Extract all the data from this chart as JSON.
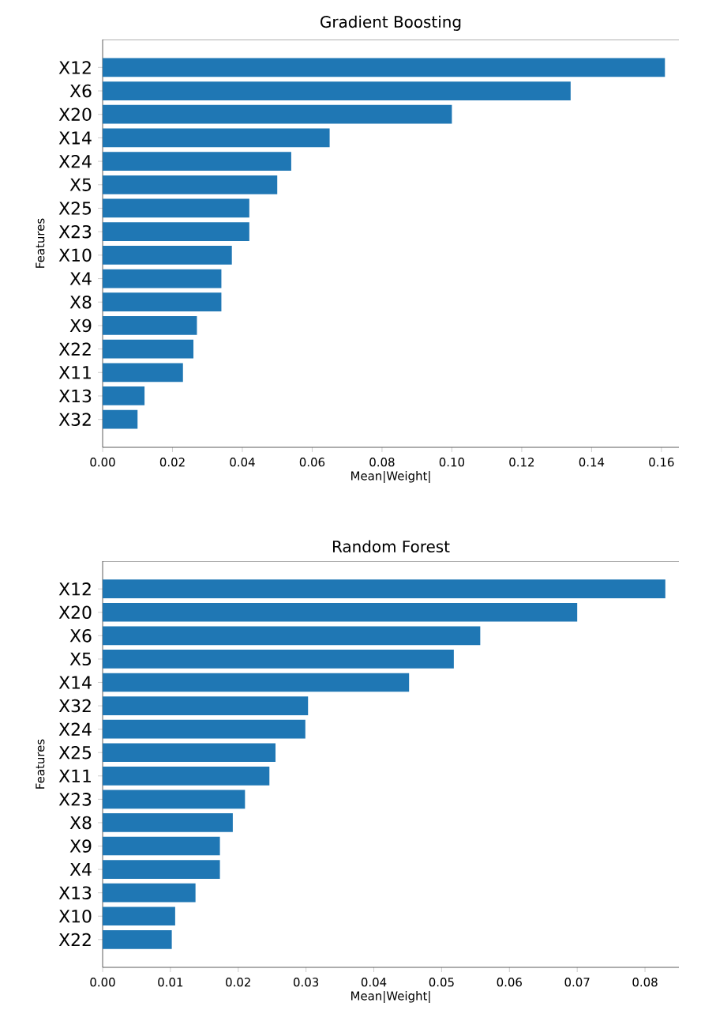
{
  "chart_data": [
    {
      "type": "bar",
      "orientation": "horizontal",
      "title": "Gradient Boosting",
      "xlabel": "Mean|Weight|",
      "ylabel": "Features",
      "color": "#1f77b4",
      "categories": [
        "X12",
        "X6",
        "X20",
        "X14",
        "X24",
        "X5",
        "X25",
        "X23",
        "X10",
        "X4",
        "X8",
        "X9",
        "X22",
        "X11",
        "X13",
        "X32"
      ],
      "values": [
        0.161,
        0.134,
        0.1,
        0.065,
        0.054,
        0.05,
        0.042,
        0.042,
        0.037,
        0.034,
        0.034,
        0.027,
        0.026,
        0.023,
        0.012,
        0.01
      ],
      "xlim": [
        0,
        0.165
      ],
      "xticks": [
        {
          "value": 0,
          "label": "0.00"
        },
        {
          "value": 0.02,
          "label": "0.02"
        },
        {
          "value": 0.04,
          "label": "0.04"
        },
        {
          "value": 0.06,
          "label": "0.06"
        },
        {
          "value": 0.08,
          "label": "0.08"
        },
        {
          "value": 0.1,
          "label": "0.10"
        },
        {
          "value": 0.12,
          "label": "0.12"
        },
        {
          "value": 0.14,
          "label": "0.14"
        },
        {
          "value": 0.16,
          "label": "0.16"
        }
      ]
    },
    {
      "type": "bar",
      "orientation": "horizontal",
      "title": "Random Forest",
      "xlabel": "Mean|Weight|",
      "ylabel": "Features",
      "color": "#1f77b4",
      "categories": [
        "X12",
        "X20",
        "X6",
        "X5",
        "X14",
        "X32",
        "X24",
        "X25",
        "X11",
        "X23",
        "X8",
        "X9",
        "X4",
        "X13",
        "X10",
        "X22"
      ],
      "values": [
        0.083,
        0.07,
        0.0557,
        0.0518,
        0.0452,
        0.0303,
        0.0299,
        0.0255,
        0.0246,
        0.021,
        0.0192,
        0.0173,
        0.0173,
        0.0137,
        0.0107,
        0.0102
      ],
      "xlim": [
        0,
        0.085
      ],
      "xticks": [
        {
          "value": 0,
          "label": "0.00"
        },
        {
          "value": 0.01,
          "label": "0.01"
        },
        {
          "value": 0.02,
          "label": "0.02"
        },
        {
          "value": 0.03,
          "label": "0.03"
        },
        {
          "value": 0.04,
          "label": "0.04"
        },
        {
          "value": 0.05,
          "label": "0.05"
        },
        {
          "value": 0.06,
          "label": "0.06"
        },
        {
          "value": 0.07,
          "label": "0.07"
        },
        {
          "value": 0.08,
          "label": "0.08"
        }
      ]
    }
  ]
}
